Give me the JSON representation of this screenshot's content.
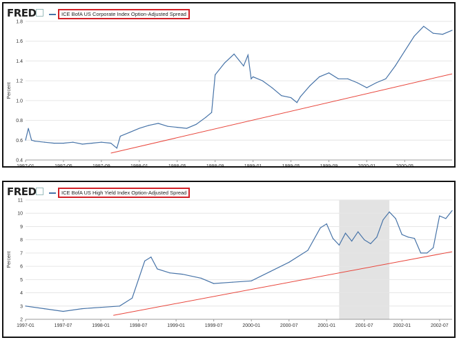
{
  "chart_data": [
    {
      "type": "line",
      "title": "ICE BofA US Corporate Index Option-Adjusted Spread",
      "ylabel": "Percent",
      "ylim": [
        0.4,
        1.8
      ],
      "xlim": [
        "1997-01",
        "2000-10"
      ],
      "x_ticks": [
        "1997-01",
        "1997-05",
        "1997-09",
        "1998-01",
        "1998-05",
        "1998-09",
        "1999-01",
        "1999-05",
        "1999-09",
        "2000-01",
        "2000-05"
      ],
      "y_ticks": [
        0.4,
        0.6,
        0.8,
        1.0,
        1.2,
        1.4,
        1.6,
        1.8
      ],
      "grid": true,
      "series": [
        {
          "name": "ICE BofA US Corporate Index Option-Adjusted Spread",
          "color": "#4572a7",
          "x": [
            "1997-01",
            "1997-01-10",
            "1997-01-20",
            "1997-02",
            "1997-03",
            "1997-04",
            "1997-05",
            "1997-06",
            "1997-07",
            "1997-08",
            "1997-09",
            "1997-10",
            "1997-10-20",
            "1997-11",
            "1997-12",
            "1998-01",
            "1998-02",
            "1998-03",
            "1998-04",
            "1998-05",
            "1998-06",
            "1998-07",
            "1998-08",
            "1998-08-20",
            "1998-09",
            "1998-10",
            "1998-11",
            "1998-12",
            "1998-12-15",
            "1998-12-25",
            "1999-01",
            "1999-02",
            "1999-03",
            "1999-04",
            "1999-05",
            "1999-05-20",
            "1999-06",
            "1999-07",
            "1999-08",
            "1999-09",
            "1999-10",
            "1999-11",
            "1999-12",
            "2000-01",
            "2000-02",
            "2000-03",
            "2000-04",
            "2000-05",
            "2000-06",
            "2000-07",
            "2000-08",
            "2000-09",
            "2000-10"
          ],
          "y": [
            0.6,
            0.72,
            0.6,
            0.59,
            0.58,
            0.57,
            0.57,
            0.58,
            0.56,
            0.57,
            0.58,
            0.57,
            0.52,
            0.64,
            0.68,
            0.72,
            0.75,
            0.77,
            0.74,
            0.73,
            0.72,
            0.76,
            0.83,
            0.88,
            1.26,
            1.38,
            1.47,
            1.35,
            1.46,
            1.22,
            1.24,
            1.2,
            1.13,
            1.05,
            1.03,
            0.98,
            1.04,
            1.15,
            1.24,
            1.28,
            1.22,
            1.22,
            1.18,
            1.13,
            1.18,
            1.22,
            1.35,
            1.5,
            1.65,
            1.75,
            1.68,
            1.67,
            1.71
          ]
        },
        {
          "name": "trend",
          "color": "#e8443a",
          "x": [
            "1997-10",
            "2000-10"
          ],
          "y": [
            0.47,
            1.27
          ]
        }
      ]
    },
    {
      "type": "line",
      "title": "ICE BofA US High Yield Index Option-Adjusted Spread",
      "ylabel": "Percent",
      "ylim": [
        2,
        11
      ],
      "xlim": [
        "1997-01",
        "2002-09"
      ],
      "x_ticks": [
        "1997-01",
        "1997-07",
        "1998-01",
        "1998-07",
        "1999-01",
        "1999-07",
        "2000-01",
        "2000-07",
        "2001-01",
        "2001-07",
        "2002-01",
        "2002-07"
      ],
      "y_ticks": [
        2,
        3,
        4,
        5,
        6,
        7,
        8,
        9,
        10,
        11
      ],
      "grid": true,
      "recession": [
        "2001-03",
        "2001-11"
      ],
      "series": [
        {
          "name": "ICE BofA US High Yield Index Option-Adjusted Spread",
          "color": "#4572a7",
          "x": [
            "1997-01",
            "1997-04",
            "1997-07",
            "1997-10",
            "1998-01",
            "1998-04",
            "1998-06",
            "1998-08",
            "1998-09",
            "1998-10",
            "1998-12",
            "1999-02",
            "1999-05",
            "1999-07",
            "1999-10",
            "2000-01",
            "2000-04",
            "2000-07",
            "2000-10",
            "2000-12",
            "2001-01",
            "2001-02",
            "2001-03",
            "2001-04",
            "2001-05",
            "2001-06",
            "2001-07",
            "2001-08",
            "2001-09",
            "2001-10",
            "2001-11",
            "2001-12",
            "2002-01",
            "2002-02",
            "2002-03",
            "2002-04",
            "2002-05",
            "2002-06",
            "2002-07",
            "2002-08",
            "2002-09"
          ],
          "y": [
            3.0,
            2.8,
            2.6,
            2.8,
            2.9,
            3.0,
            3.6,
            6.4,
            6.7,
            5.8,
            5.5,
            5.4,
            5.1,
            4.7,
            4.8,
            4.9,
            5.6,
            6.3,
            7.2,
            8.9,
            9.2,
            8.1,
            7.6,
            8.5,
            7.9,
            8.6,
            8.0,
            7.7,
            8.2,
            9.5,
            10.1,
            9.6,
            8.4,
            8.2,
            8.1,
            7.0,
            7.0,
            7.4,
            9.8,
            9.6,
            10.2
          ]
        },
        {
          "name": "trend",
          "color": "#e8443a",
          "x": [
            "1998-03",
            "2002-09"
          ],
          "y": [
            2.3,
            7.1
          ]
        }
      ]
    }
  ],
  "branding": {
    "logo": "FRED"
  }
}
